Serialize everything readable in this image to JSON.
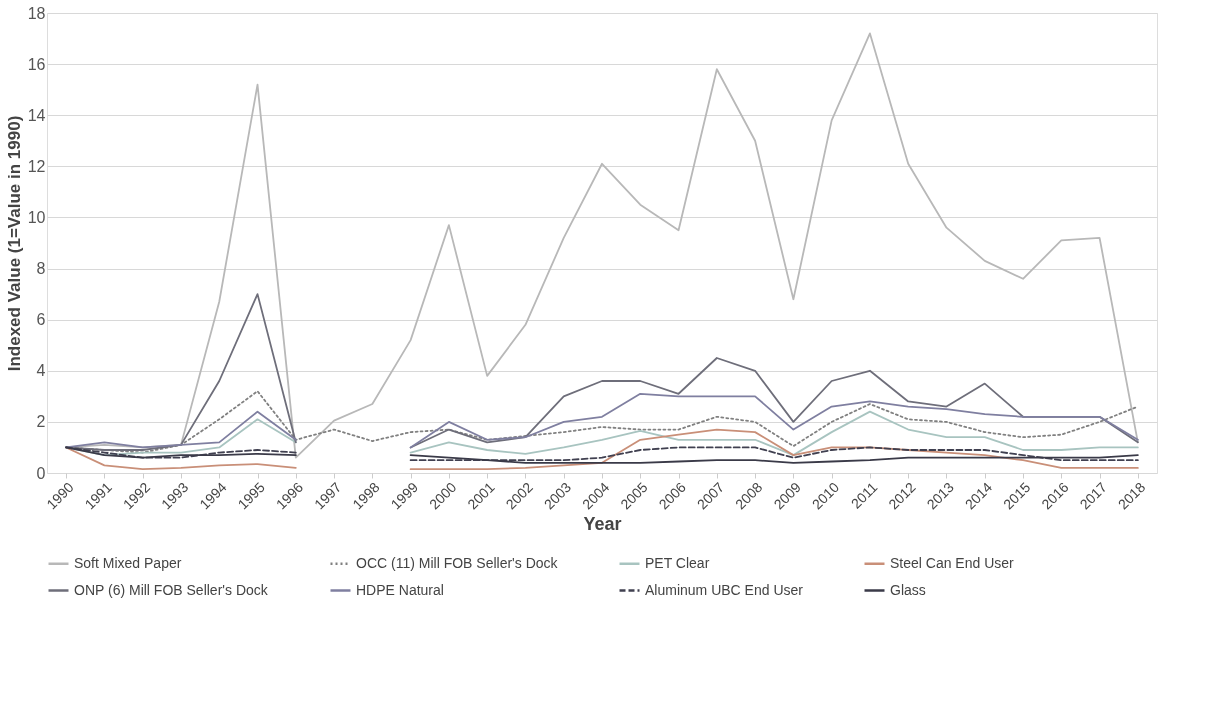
{
  "chart_data": {
    "type": "line",
    "xlabel": "Year",
    "ylabel": "Indexed Value (1=Value in 1990)",
    "categories": [
      "1990",
      "1991",
      "1992",
      "1993",
      "1994",
      "1995",
      "1996",
      "1997",
      "1998",
      "1999",
      "2000",
      "2001",
      "2002",
      "2003",
      "2004",
      "2005",
      "2006",
      "2007",
      "2008",
      "2009",
      "2010",
      "2011",
      "2012",
      "2013",
      "2014",
      "2015",
      "2016",
      "2017",
      "2018"
    ],
    "ylim": [
      0,
      18
    ],
    "yticks": [
      0,
      2,
      4,
      6,
      8,
      10,
      12,
      14,
      16,
      18
    ],
    "grid": "y",
    "legend": "bottom",
    "marker": "none",
    "series": [
      {
        "name": "Soft Mixed Paper",
        "color": "#b8b8b8",
        "line_style": "solid",
        "values": [
          1.0,
          1.1,
          1.0,
          1.1,
          6.7,
          15.2,
          0.6,
          2.05,
          2.7,
          5.2,
          9.7,
          3.8,
          5.8,
          9.2,
          12.1,
          10.5,
          9.5,
          15.8,
          13.0,
          6.8,
          13.8,
          17.2,
          12.1,
          9.6,
          8.3,
          7.6,
          9.1,
          9.2,
          1.2
        ]
      },
      {
        "name": "OCC (11) Mill FOB Seller's Dock",
        "color": "#808080",
        "line_style": "dotted",
        "values": [
          1.0,
          0.9,
          0.8,
          1.1,
          2.1,
          3.2,
          1.3,
          1.7,
          1.25,
          1.6,
          1.7,
          1.3,
          1.45,
          1.6,
          1.8,
          1.7,
          1.7,
          2.2,
          2.0,
          1.05,
          2.0,
          2.7,
          2.1,
          2.0,
          1.6,
          1.4,
          1.5,
          2.0,
          2.6
        ]
      },
      {
        "name": "PET Clear",
        "color": "#a8c4c0",
        "line_style": "solid",
        "values": [
          1.0,
          0.7,
          0.8,
          0.8,
          1.0,
          2.1,
          1.2,
          null,
          null,
          0.8,
          1.2,
          0.9,
          0.75,
          1.0,
          1.3,
          1.65,
          1.3,
          1.3,
          1.3,
          0.7,
          1.6,
          2.4,
          1.7,
          1.4,
          1.4,
          0.9,
          0.9,
          1.0,
          1.0
        ]
      },
      {
        "name": "Steel Can End User",
        "color": "#c98f78",
        "line_style": "solid",
        "values": [
          1.0,
          0.3,
          0.15,
          0.2,
          0.3,
          0.35,
          0.2,
          null,
          null,
          0.15,
          0.15,
          0.15,
          0.2,
          0.3,
          0.4,
          1.3,
          1.5,
          1.7,
          1.6,
          0.7,
          1.0,
          1.0,
          0.9,
          0.8,
          0.7,
          0.5,
          0.2,
          0.2,
          0.2
        ]
      },
      {
        "name": "ONP (6) Mill FOB Seller's Dock",
        "color": "#6e6e7a",
        "line_style": "solid",
        "values": [
          1.0,
          0.9,
          0.9,
          1.1,
          3.6,
          7.0,
          1.2,
          null,
          null,
          1.0,
          1.7,
          1.2,
          1.4,
          3.0,
          3.6,
          3.6,
          3.1,
          4.5,
          4.0,
          2.0,
          3.6,
          4.0,
          2.8,
          2.6,
          3.5,
          2.2,
          2.2,
          2.2,
          1.2
        ]
      },
      {
        "name": "HDPE Natural",
        "color": "#7f7fa0",
        "line_style": "solid",
        "values": [
          1.0,
          1.2,
          1.0,
          1.1,
          1.2,
          2.4,
          1.3,
          null,
          null,
          1.0,
          2.0,
          1.3,
          1.4,
          2.0,
          2.2,
          3.1,
          3.0,
          3.0,
          3.0,
          1.7,
          2.6,
          2.8,
          2.6,
          2.5,
          2.3,
          2.2,
          2.2,
          2.2,
          1.3
        ]
      },
      {
        "name": "Aluminum UBC End User",
        "color": "#404050",
        "line_style": "dashed",
        "values": [
          1.0,
          0.8,
          0.6,
          0.6,
          0.8,
          0.9,
          0.8,
          null,
          null,
          0.5,
          0.5,
          0.5,
          0.5,
          0.5,
          0.6,
          0.9,
          1.0,
          1.0,
          1.0,
          0.6,
          0.9,
          1.0,
          0.9,
          0.9,
          0.9,
          0.7,
          0.5,
          0.5,
          0.5
        ]
      },
      {
        "name": "Glass",
        "color": "#3a3a48",
        "line_style": "solid",
        "values": [
          1.0,
          0.7,
          0.6,
          0.7,
          0.7,
          0.75,
          0.7,
          null,
          null,
          0.7,
          0.6,
          0.5,
          0.4,
          0.4,
          0.4,
          0.4,
          0.45,
          0.5,
          0.5,
          0.4,
          0.45,
          0.5,
          0.6,
          0.6,
          0.6,
          0.6,
          0.6,
          0.6,
          0.7
        ]
      }
    ]
  }
}
